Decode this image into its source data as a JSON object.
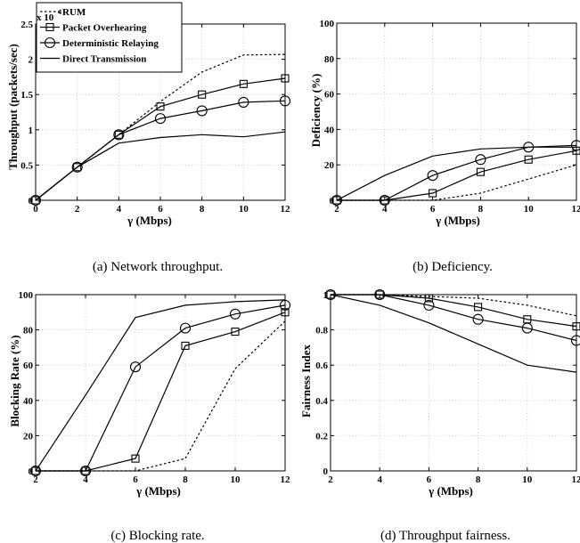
{
  "chart_data": [
    {
      "type": "line",
      "id": "a",
      "caption": "(a) Network throughput.",
      "xlabel": "γ (Mbps)",
      "ylabel": "Throughput (packets/sec)",
      "exponent_label": "x 10",
      "exponent_power": "4",
      "xlim": [
        0,
        12
      ],
      "ylim": [
        0,
        2.5
      ],
      "xticks": [
        0,
        2,
        4,
        6,
        8,
        10,
        12
      ],
      "xtick_labels": [
        "0",
        "2",
        "4",
        "6",
        "8",
        "10",
        "12"
      ],
      "yticks": [
        0,
        0.5,
        1,
        1.5,
        2,
        2.5
      ],
      "ytick_labels": [
        "0",
        "0.5",
        "1",
        "1.5",
        "2",
        "2.5"
      ],
      "grid": true,
      "legend": "top-left",
      "x": [
        0,
        2,
        4,
        6,
        8,
        10,
        12
      ],
      "series": [
        {
          "name": "RUM",
          "style": "dotted",
          "marker": "none",
          "values": [
            0,
            0.47,
            0.93,
            1.4,
            1.82,
            2.06,
            2.07
          ]
        },
        {
          "name": "Packet Overhearing",
          "style": "solid",
          "marker": "square",
          "values": [
            0,
            0.47,
            0.93,
            1.33,
            1.5,
            1.65,
            1.73
          ]
        },
        {
          "name": "Deterministic Relaying",
          "style": "solid",
          "marker": "circle",
          "values": [
            0,
            0.47,
            0.93,
            1.16,
            1.27,
            1.39,
            1.41
          ]
        },
        {
          "name": "Direct Transmission",
          "style": "solid",
          "marker": "none",
          "values": [
            0,
            0.47,
            0.81,
            0.89,
            0.93,
            0.9,
            0.97
          ]
        }
      ]
    },
    {
      "type": "line",
      "id": "b",
      "caption": "(b) Deficiency.",
      "xlabel": "γ (Mbps)",
      "ylabel": "Deficiency (%)",
      "xlim": [
        2,
        12
      ],
      "ylim": [
        0,
        100
      ],
      "xticks": [
        2,
        4,
        6,
        8,
        10,
        12
      ],
      "xtick_labels": [
        "2",
        "4",
        "6",
        "8",
        "10",
        "12"
      ],
      "yticks": [
        0,
        20,
        40,
        60,
        80,
        100
      ],
      "ytick_labels": [
        "0",
        "20",
        "40",
        "60",
        "80",
        "100"
      ],
      "grid": true,
      "x": [
        2,
        4,
        6,
        8,
        10,
        12
      ],
      "series": [
        {
          "style": "dotted",
          "marker": "none",
          "values": [
            0,
            0,
            0,
            4,
            12,
            20
          ]
        },
        {
          "style": "solid",
          "marker": "square",
          "values": [
            0,
            0,
            4,
            16,
            23,
            28
          ]
        },
        {
          "style": "solid",
          "marker": "circle",
          "values": [
            0,
            0,
            14,
            23,
            30,
            31
          ]
        },
        {
          "style": "solid",
          "marker": "none",
          "values": [
            0,
            14,
            25,
            29,
            30,
            30
          ]
        }
      ]
    },
    {
      "type": "line",
      "id": "c",
      "caption": "(c) Blocking rate.",
      "xlabel": "γ (Mbps)",
      "ylabel": "Blocking Rate (%)",
      "xlim": [
        2,
        12
      ],
      "ylim": [
        0,
        100
      ],
      "xticks": [
        2,
        4,
        6,
        8,
        10,
        12
      ],
      "xtick_labels": [
        "2",
        "4",
        "6",
        "8",
        "10",
        "12"
      ],
      "yticks": [
        0,
        20,
        40,
        60,
        80,
        100
      ],
      "ytick_labels": [
        "0",
        "20",
        "40",
        "60",
        "80",
        "100"
      ],
      "grid": true,
      "x": [
        2,
        4,
        6,
        8,
        10,
        12
      ],
      "series": [
        {
          "style": "dotted",
          "marker": "none",
          "values": [
            0,
            0,
            0,
            7,
            58,
            85
          ]
        },
        {
          "style": "solid",
          "marker": "square",
          "values": [
            0,
            0,
            7,
            71,
            79,
            90
          ]
        },
        {
          "style": "solid",
          "marker": "circle",
          "values": [
            0,
            0,
            59,
            81,
            89,
            94
          ]
        },
        {
          "style": "solid",
          "marker": "none",
          "values": [
            0,
            43,
            87,
            94,
            96,
            97
          ]
        }
      ]
    },
    {
      "type": "line",
      "id": "d",
      "caption": "(d) Throughput fairness.",
      "xlabel": "γ (Mbps)",
      "ylabel": "Fairness Index",
      "xlim": [
        2,
        12
      ],
      "ylim": [
        0,
        1
      ],
      "xticks": [
        2,
        4,
        6,
        8,
        10,
        12
      ],
      "xtick_labels": [
        "2",
        "4",
        "6",
        "8",
        "10",
        "12"
      ],
      "yticks": [
        0,
        0.2,
        0.4,
        0.6,
        0.8,
        1
      ],
      "ytick_labels": [
        "0",
        "0.2",
        "0.4",
        "0.6",
        "0.8",
        "1"
      ],
      "grid": true,
      "x": [
        2,
        4,
        6,
        8,
        10,
        12
      ],
      "series": [
        {
          "style": "dotted",
          "marker": "none",
          "values": [
            1,
            1,
            0.99,
            0.98,
            0.94,
            0.88
          ]
        },
        {
          "style": "solid",
          "marker": "square",
          "values": [
            1,
            1,
            0.98,
            0.93,
            0.86,
            0.82
          ]
        },
        {
          "style": "solid",
          "marker": "circle",
          "values": [
            1,
            1,
            0.94,
            0.86,
            0.81,
            0.74
          ]
        },
        {
          "style": "solid",
          "marker": "none",
          "values": [
            1,
            0.94,
            0.84,
            0.72,
            0.6,
            0.56
          ]
        }
      ]
    }
  ]
}
